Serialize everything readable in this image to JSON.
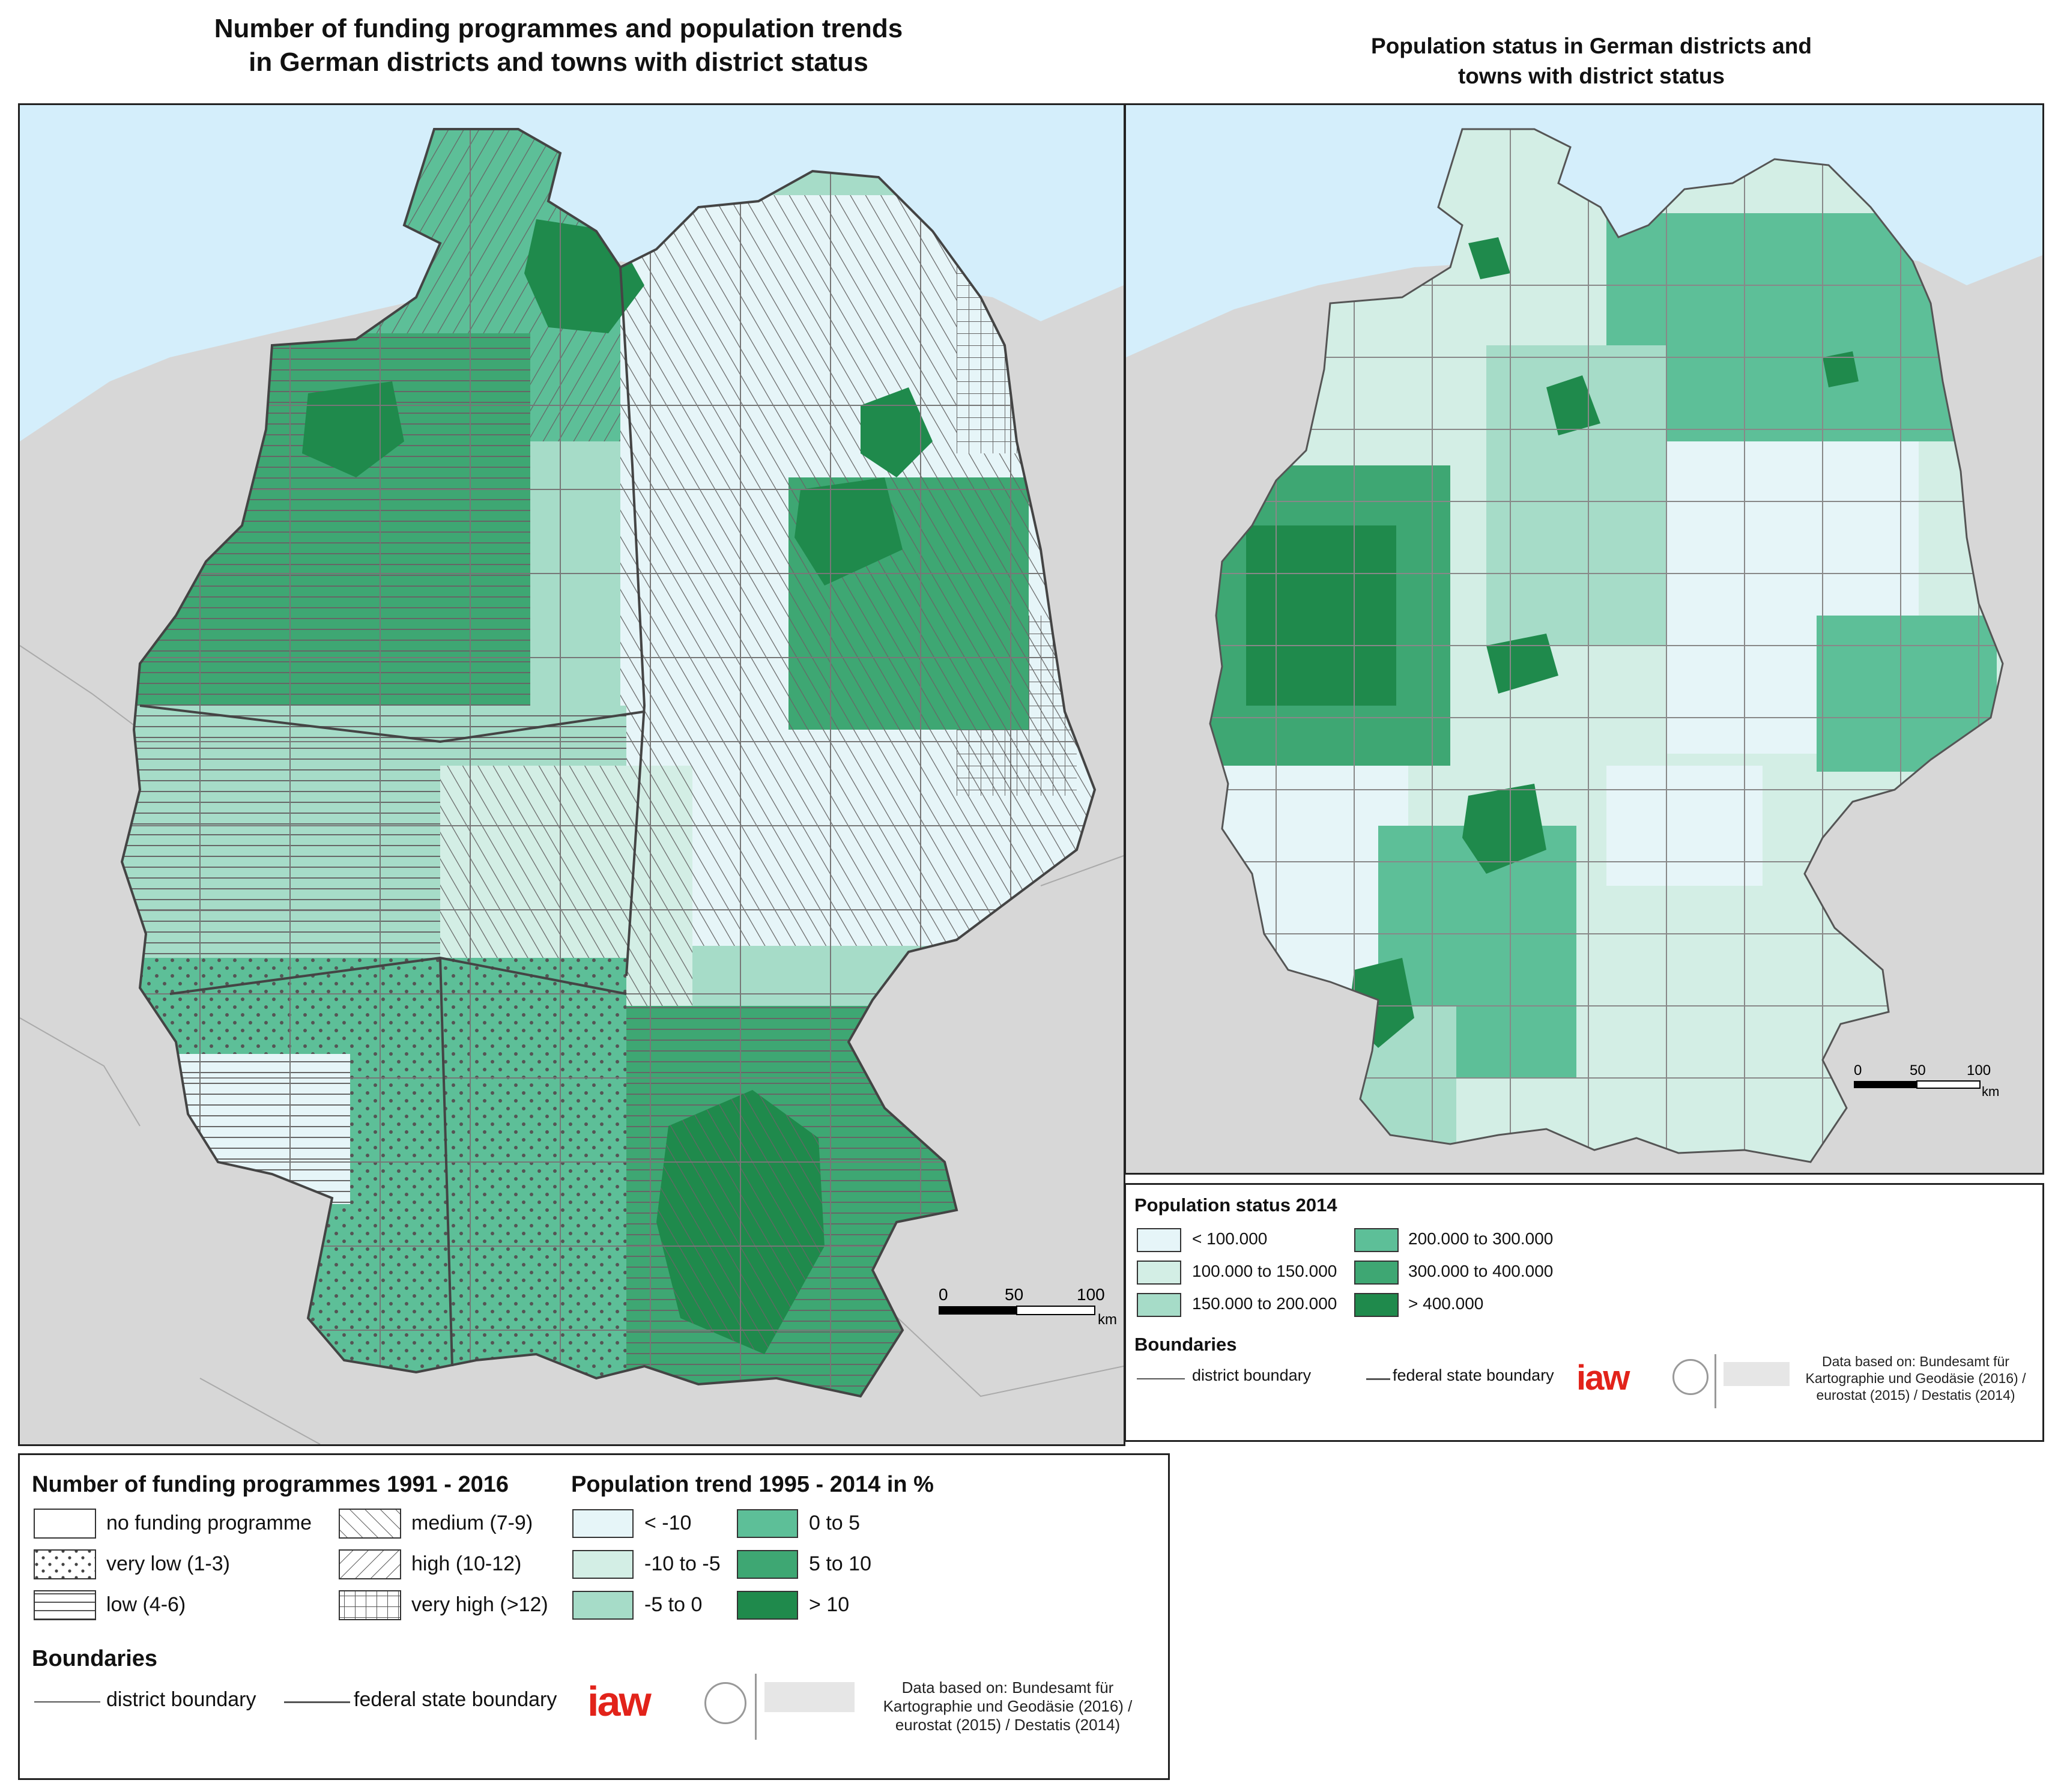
{
  "left_map": {
    "title_line1": "Number of funding programmes and population trends",
    "title_line2": "in German districts and towns with district status",
    "scale": {
      "labels": [
        "0",
        "50",
        "100"
      ],
      "unit": "km"
    }
  },
  "right_map": {
    "title_line1": "Population status in German districts and",
    "title_line2": "towns with district status",
    "scale": {
      "labels": [
        "0",
        "50",
        "100"
      ],
      "unit": "km"
    }
  },
  "legend_left": {
    "funding_heading": "Number of funding programmes 1991 - 2016",
    "funding_classes": [
      {
        "label": "no funding programme",
        "pattern": "none"
      },
      {
        "label": "very low (1-3)",
        "pattern": "dots"
      },
      {
        "label": "low (4-6)",
        "pattern": "horizontal"
      },
      {
        "label": "medium (7-9)",
        "pattern": "diag-back"
      },
      {
        "label": "high (10-12)",
        "pattern": "diag-fwd"
      },
      {
        "label": "very high (>12)",
        "pattern": "grid"
      }
    ],
    "trend_heading": "Population trend 1995 - 2014 in %",
    "trend_classes": [
      {
        "label": "< -10",
        "color": "#e6f5f8"
      },
      {
        "label": "-10 to -5",
        "color": "#d3eee5"
      },
      {
        "label": "-5 to 0",
        "color": "#a6dcc8"
      },
      {
        "label": "0 to 5",
        "color": "#5dbf98"
      },
      {
        "label": "5 to 10",
        "color": "#3ea773"
      },
      {
        "label": "> 10",
        "color": "#1f8a4c"
      }
    ],
    "boundaries_heading": "Boundaries",
    "district_boundary": "district boundary",
    "state_boundary": "federal state boundary",
    "logo_text": "iaw",
    "source_lines": [
      "Data based on: Bundesamt für",
      "Kartographie und Geodäsie (2016) /",
      "eurostat (2015) / Destatis (2014)"
    ]
  },
  "legend_right": {
    "heading": "Population status 2014",
    "classes": [
      {
        "label": "< 100.000",
        "color": "#e6f5f8"
      },
      {
        "label": "100.000 to 150.000",
        "color": "#d3eee5"
      },
      {
        "label": "150.000 to 200.000",
        "color": "#a6dcc8"
      },
      {
        "label": "200.000 to 300.000",
        "color": "#5dbf98"
      },
      {
        "label": "300.000 to 400.000",
        "color": "#3ea773"
      },
      {
        "label": "> 400.000",
        "color": "#1f8a4c"
      }
    ],
    "boundaries_heading": "Boundaries",
    "district_boundary": "district boundary",
    "state_boundary": "federal state boundary",
    "logo_text": "iaw",
    "source_lines": [
      "Data based on: Bundesamt für",
      "Kartographie und Geodäsie (2016) /",
      "eurostat (2015) / Destatis (2014)"
    ]
  },
  "colors": {
    "sea": "#d4eefb",
    "neighbour_land": "#d7d7d7",
    "boundary": "#555555",
    "logo_red": "#e2231a"
  }
}
